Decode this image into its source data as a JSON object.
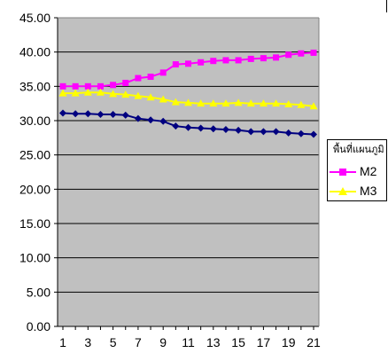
{
  "chart_data": {
    "type": "line",
    "x": [
      1,
      2,
      3,
      4,
      5,
      6,
      7,
      8,
      9,
      10,
      11,
      12,
      13,
      14,
      15,
      16,
      17,
      18,
      19,
      20,
      21
    ],
    "x_tick_labels": [
      "1",
      "3",
      "5",
      "7",
      "9",
      "11",
      "13",
      "15",
      "17",
      "19",
      "21"
    ],
    "ylim": [
      0,
      45
    ],
    "y_tick_labels": [
      "0.00",
      "5.00",
      "10.00",
      "15.00",
      "20.00",
      "25.00",
      "30.00",
      "35.00",
      "40.00",
      "45.00"
    ],
    "grid": true,
    "legend_position": "right",
    "legend_title": "พื้นที่แผนภูมิ",
    "plot_background": "#c0c0c0",
    "series": [
      {
        "values": [
          31.1,
          31.0,
          31.0,
          30.9,
          30.9,
          30.8,
          30.3,
          30.1,
          29.9,
          29.2,
          29.0,
          28.9,
          28.8,
          28.7,
          28.6,
          28.4,
          28.4,
          28.4,
          28.2,
          28.1,
          28.0
        ],
        "color": "#000080",
        "marker": "diamond"
      },
      {
        "name": "M2",
        "values": [
          35.0,
          35.0,
          35.0,
          35.0,
          35.2,
          35.5,
          36.2,
          36.4,
          37.0,
          38.2,
          38.3,
          38.5,
          38.7,
          38.8,
          38.8,
          39.0,
          39.1,
          39.2,
          39.6,
          39.8,
          39.9
        ],
        "color": "#ff00ff",
        "marker": "square"
      },
      {
        "name": "M3",
        "values": [
          34.0,
          34.0,
          34.1,
          34.1,
          33.9,
          33.8,
          33.6,
          33.4,
          33.1,
          32.7,
          32.6,
          32.5,
          32.5,
          32.5,
          32.6,
          32.5,
          32.5,
          32.5,
          32.4,
          32.3,
          32.1
        ],
        "color": "#ffff00",
        "marker": "triangle"
      }
    ]
  }
}
